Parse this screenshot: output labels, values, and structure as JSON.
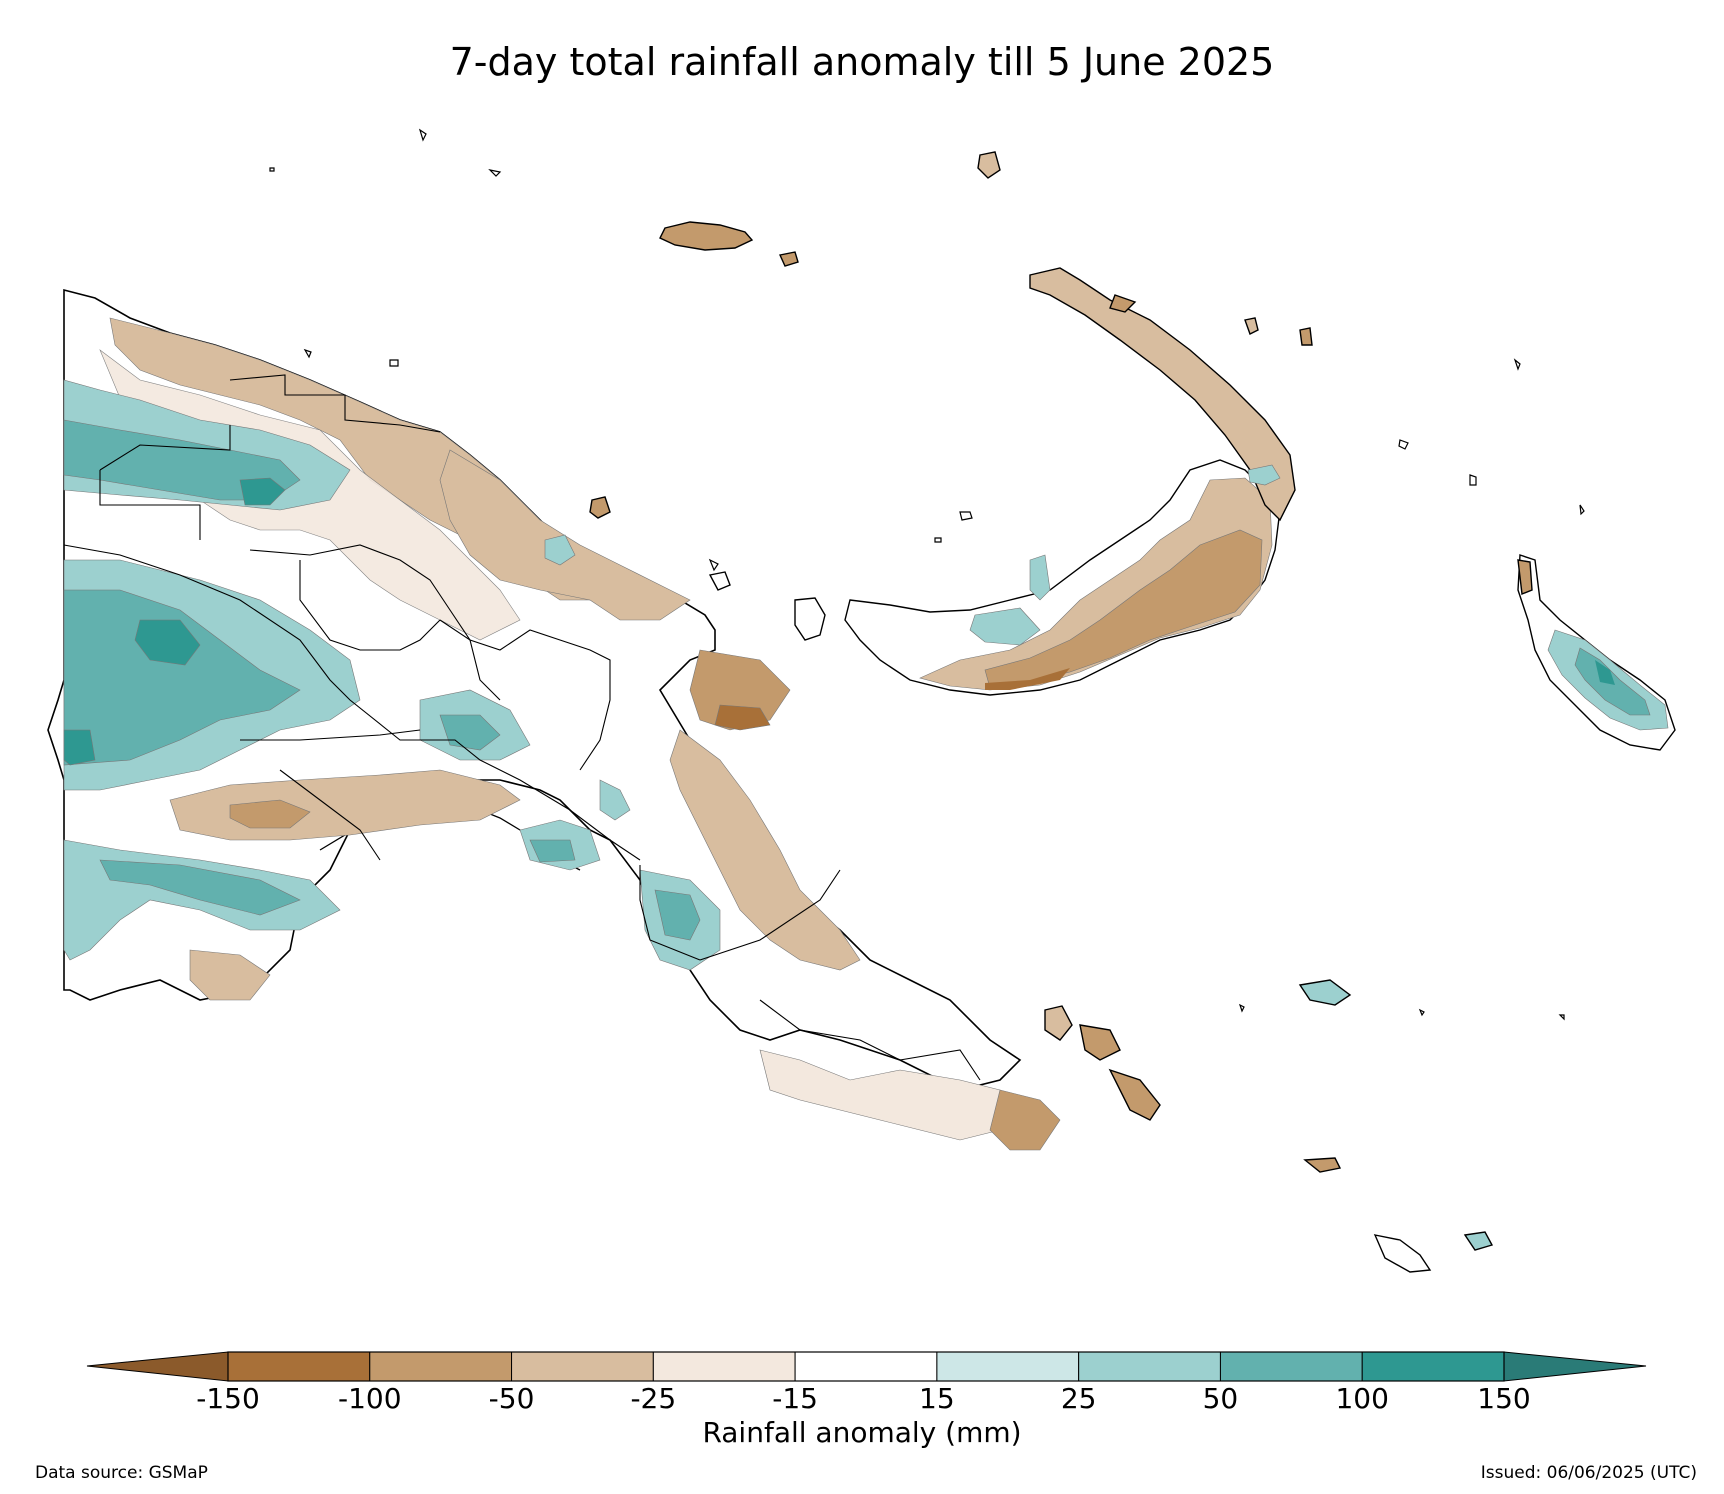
{
  "title": "7-day total rainfall anomaly till 5 June 2025",
  "colorbar": {
    "label": "Rainfall anomaly (mm)",
    "ticks": [
      "-150",
      "-100",
      "-50",
      "-25",
      "-15",
      "15",
      "25",
      "50",
      "100",
      "150"
    ],
    "extend_colors": {
      "low": "#8b5a2b",
      "high": "#2a7b77"
    },
    "bin_colors": [
      "#a87038",
      "#c39a6c",
      "#d8bd9f",
      "#f3e8de",
      "#ffffff",
      "#cde7e7",
      "#9cd0cf",
      "#62b1ae",
      "#2e9891"
    ]
  },
  "footer": {
    "source": "Data source: GSMaP",
    "issued": "Issued: 06/06/2025 (UTC)"
  }
}
